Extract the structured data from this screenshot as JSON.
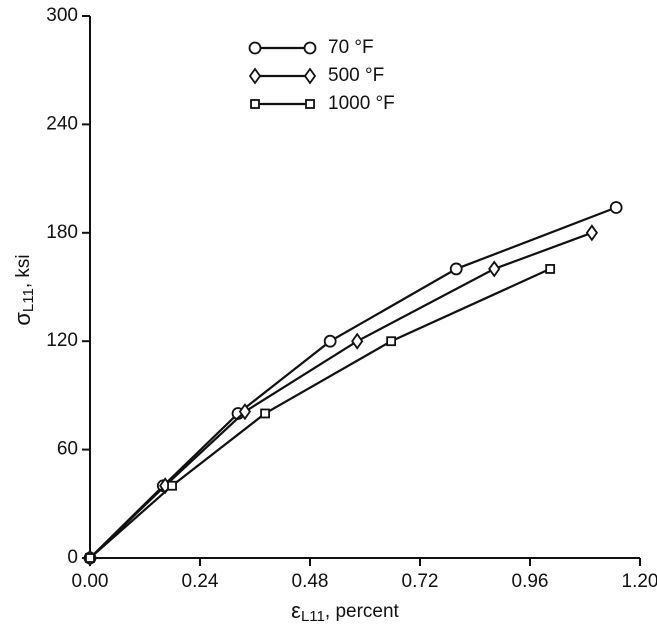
{
  "chart_data": {
    "type": "line",
    "xlabel": {
      "symbol": "ε",
      "subscript": "L11",
      "text": ", percent"
    },
    "ylabel": {
      "symbol": "σ",
      "subscript": "L11",
      "text": ", ksi"
    },
    "xlim": [
      0,
      1.2
    ],
    "xticks": [
      {
        "value": 0,
        "label": "0.00"
      },
      {
        "value": 0.24,
        "label": "0.24"
      },
      {
        "value": 0.48,
        "label": "0.48"
      },
      {
        "value": 0.72,
        "label": "0.72"
      },
      {
        "value": 0.96,
        "label": "0.96"
      },
      {
        "value": 1.2,
        "label": "1.20"
      }
    ],
    "ylim": [
      0,
      300
    ],
    "yticks": [
      0,
      60,
      120,
      180,
      240,
      300
    ],
    "series": [
      {
        "name": "70 °F",
        "color": "#111111",
        "marker": "circle",
        "x": [
          0,
          0.16,
          0.323,
          0.524,
          0.799,
          1.148
        ],
        "values": [
          0,
          40,
          80,
          120,
          160,
          194
        ]
      },
      {
        "name": "500 °F",
        "color": "#111111",
        "marker": "diamond",
        "x": [
          0,
          0.164,
          0.338,
          0.583,
          0.882,
          1.095
        ],
        "values": [
          0,
          40,
          81,
          120,
          160,
          180
        ]
      },
      {
        "name": "1000 °F",
        "color": "#111111",
        "marker": "square",
        "x": [
          0,
          0.179,
          0.382,
          0.657,
          1.004
        ],
        "values": [
          0,
          40,
          80,
          120,
          160
        ]
      }
    ]
  }
}
